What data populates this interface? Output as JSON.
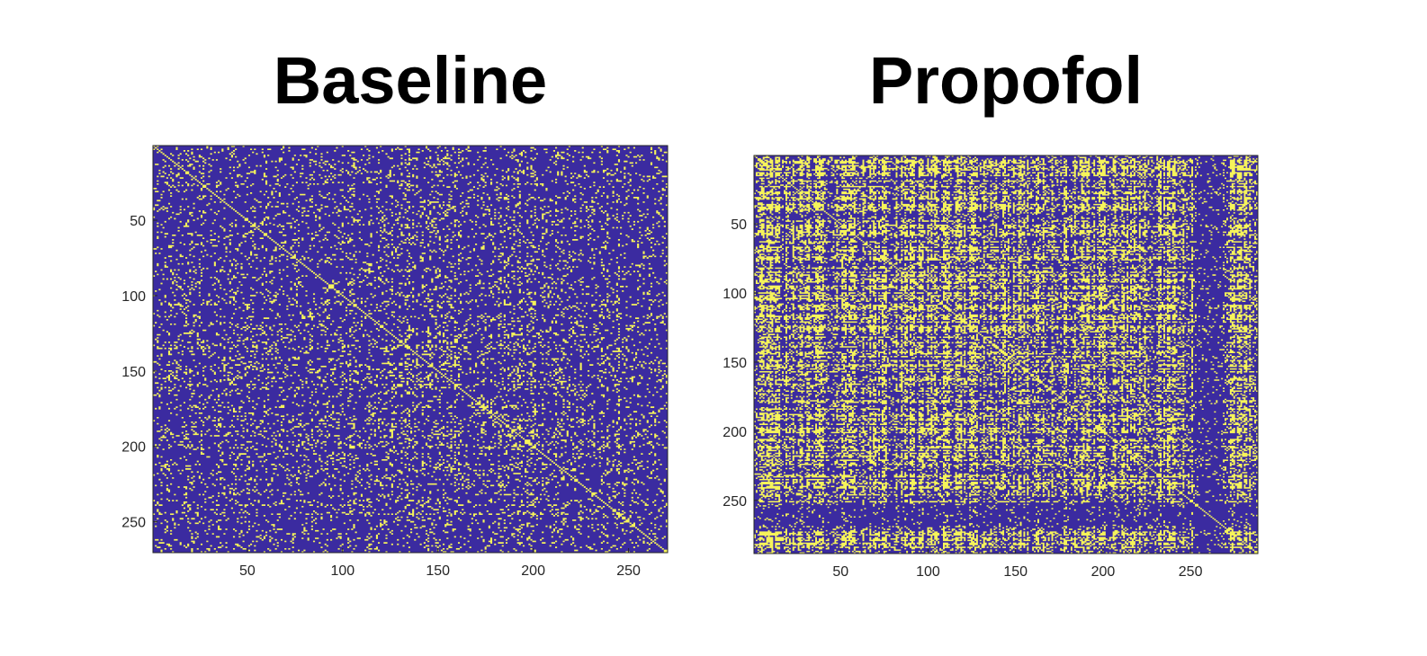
{
  "chart_data": [
    {
      "type": "heatmap",
      "title": "Baseline",
      "xlabel": "",
      "ylabel": "",
      "xlim": [
        1,
        270
      ],
      "ylim": [
        1,
        270
      ],
      "xticks": [
        50,
        100,
        150,
        200,
        250
      ],
      "yticks": [
        50,
        100,
        150,
        200,
        250
      ],
      "values": "binary adjacency matrix (0 = background, 1 = connection)",
      "colors": {
        "zero": "#3B2BA0",
        "one": "#F6F45A"
      }
    },
    {
      "type": "heatmap",
      "title": "Propofol",
      "xlabel": "",
      "ylabel": "",
      "xlim": [
        1,
        288
      ],
      "ylim": [
        1,
        288
      ],
      "xticks": [
        50,
        100,
        150,
        200,
        250
      ],
      "yticks": [
        50,
        100,
        150,
        200,
        250
      ],
      "values": "binary adjacency matrix (0 = background, 1 = connection)",
      "colors": {
        "zero": "#3B2BA0",
        "one": "#F6F45A"
      }
    }
  ]
}
